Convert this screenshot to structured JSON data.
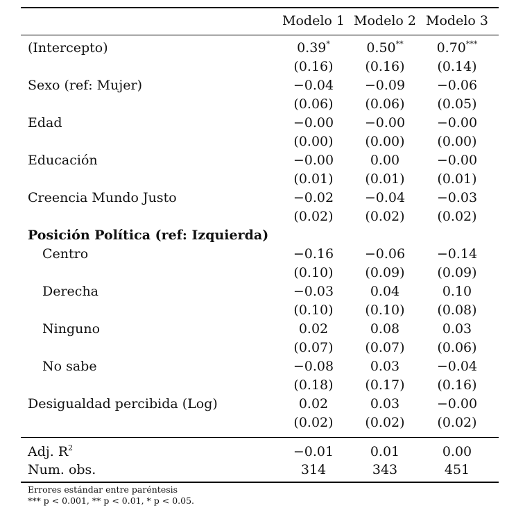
{
  "table": {
    "headers": [
      "Modelo 1",
      "Modelo 2",
      "Modelo 3"
    ],
    "rows": [
      {
        "label": "(Intercepto)",
        "indent": false,
        "bold": false,
        "coef": [
          {
            "v": "0.39",
            "s": "*"
          },
          {
            "v": "0.50",
            "s": "**"
          },
          {
            "v": "0.70",
            "s": "***"
          }
        ],
        "se": [
          "(0.16)",
          "(0.16)",
          "(0.14)"
        ]
      },
      {
        "label": "Sexo (ref: Mujer)",
        "indent": false,
        "bold": false,
        "coef": [
          {
            "v": "−0.04",
            "s": ""
          },
          {
            "v": "−0.09",
            "s": ""
          },
          {
            "v": "−0.06",
            "s": ""
          }
        ],
        "se": [
          "(0.06)",
          "(0.06)",
          "(0.05)"
        ]
      },
      {
        "label": "Edad",
        "indent": false,
        "bold": false,
        "coef": [
          {
            "v": "−0.00",
            "s": ""
          },
          {
            "v": "−0.00",
            "s": ""
          },
          {
            "v": "−0.00",
            "s": ""
          }
        ],
        "se": [
          "(0.00)",
          "(0.00)",
          "(0.00)"
        ]
      },
      {
        "label": "Educación",
        "indent": false,
        "bold": false,
        "coef": [
          {
            "v": "−0.00",
            "s": ""
          },
          {
            "v": "0.00",
            "s": ""
          },
          {
            "v": "−0.00",
            "s": ""
          }
        ],
        "se": [
          "(0.01)",
          "(0.01)",
          "(0.01)"
        ]
      },
      {
        "label": "Creencia Mundo Justo",
        "indent": false,
        "bold": false,
        "coef": [
          {
            "v": "−0.02",
            "s": ""
          },
          {
            "v": "−0.04",
            "s": ""
          },
          {
            "v": "−0.03",
            "s": ""
          }
        ],
        "se": [
          "(0.02)",
          "(0.02)",
          "(0.02)"
        ]
      },
      {
        "label": "Posición Política (ref: Izquierda)",
        "indent": false,
        "bold": true,
        "coef": null,
        "se": null
      },
      {
        "label": "Centro",
        "indent": true,
        "bold": false,
        "coef": [
          {
            "v": "−0.16",
            "s": ""
          },
          {
            "v": "−0.06",
            "s": ""
          },
          {
            "v": "−0.14",
            "s": ""
          }
        ],
        "se": [
          "(0.10)",
          "(0.09)",
          "(0.09)"
        ]
      },
      {
        "label": "Derecha",
        "indent": true,
        "bold": false,
        "coef": [
          {
            "v": "−0.03",
            "s": ""
          },
          {
            "v": "0.04",
            "s": ""
          },
          {
            "v": "0.10",
            "s": ""
          }
        ],
        "se": [
          "(0.10)",
          "(0.10)",
          "(0.08)"
        ]
      },
      {
        "label": "Ninguno",
        "indent": true,
        "bold": false,
        "coef": [
          {
            "v": "0.02",
            "s": ""
          },
          {
            "v": "0.08",
            "s": ""
          },
          {
            "v": "0.03",
            "s": ""
          }
        ],
        "se": [
          "(0.07)",
          "(0.07)",
          "(0.06)"
        ]
      },
      {
        "label": "No sabe",
        "indent": true,
        "bold": false,
        "coef": [
          {
            "v": "−0.08",
            "s": ""
          },
          {
            "v": "0.03",
            "s": ""
          },
          {
            "v": "−0.04",
            "s": ""
          }
        ],
        "se": [
          "(0.18)",
          "(0.17)",
          "(0.16)"
        ]
      },
      {
        "label": "Desigualdad percibida (Log)",
        "indent": false,
        "bold": false,
        "coef": [
          {
            "v": "0.02",
            "s": ""
          },
          {
            "v": "0.03",
            "s": ""
          },
          {
            "v": "−0.00",
            "s": ""
          }
        ],
        "se": [
          "(0.02)",
          "(0.02)",
          "(0.02)"
        ]
      }
    ],
    "stats": [
      {
        "label": "Adj. R",
        "label_sup": "2",
        "values": [
          "−0.01",
          "0.01",
          "0.00"
        ]
      },
      {
        "label": "Num. obs.",
        "label_sup": "",
        "values": [
          "314",
          "343",
          "451"
        ]
      }
    ],
    "footnotes": [
      "Errores estándar entre paréntesis",
      "*** p < 0.001, ** p < 0.01, * p < 0.05."
    ]
  }
}
